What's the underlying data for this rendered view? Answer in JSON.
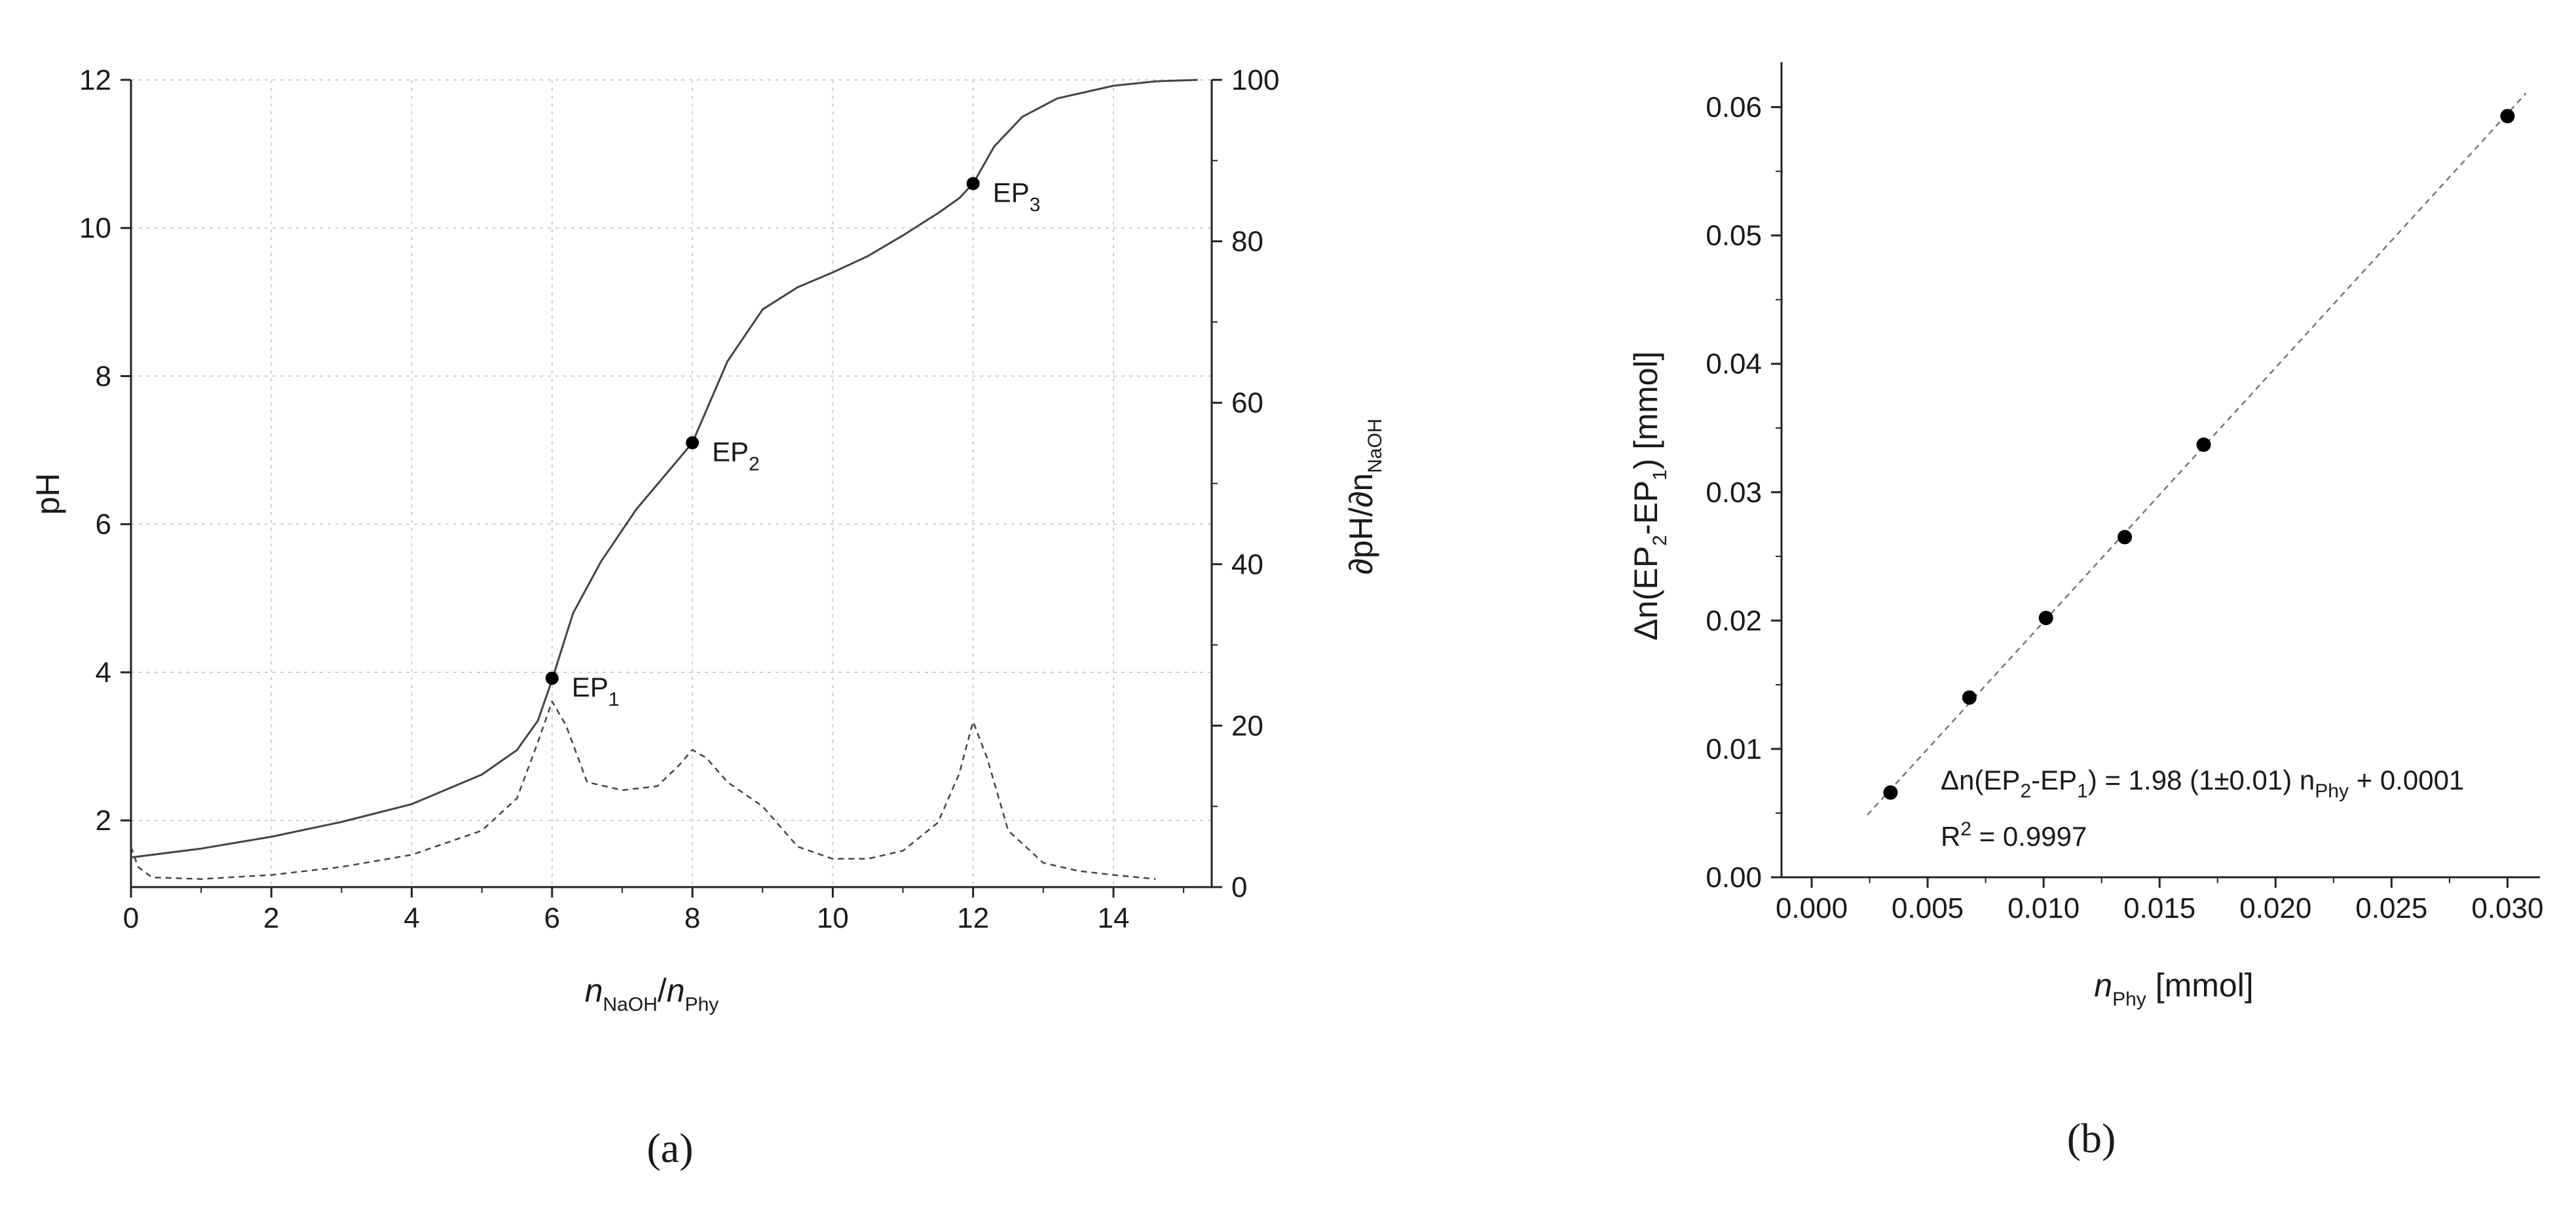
{
  "chart_data": [
    {
      "type": "line",
      "panel": "(a)",
      "xlabel": "n",
      "xlabel_sub1": "NaOH",
      "xlabel_sep": "/",
      "xlabel_n2": "n",
      "xlabel_sub2": "Phy",
      "ylabel": "pH",
      "y2label": "∂pH/∂n",
      "y2label_sub": "NaOH",
      "xlim": [
        0,
        15.4
      ],
      "ylim": [
        1.1,
        12
      ],
      "y2lim": [
        0,
        100
      ],
      "xticks": [
        "0",
        "2",
        "4",
        "6",
        "8",
        "10",
        "12",
        "14"
      ],
      "yticks": [
        "2",
        "4",
        "6",
        "8",
        "10",
        "12"
      ],
      "y2ticks": [
        "0",
        "20",
        "40",
        "60",
        "80",
        "100"
      ],
      "grid": true,
      "series": [
        {
          "name": "pH",
          "axis": "left",
          "style": "solid",
          "x": [
            0,
            1,
            2,
            3,
            4,
            5,
            5.5,
            5.8,
            6.0,
            6.3,
            6.7,
            7.2,
            7.6,
            8.0,
            8.5,
            9.0,
            9.5,
            10.0,
            10.5,
            11.0,
            11.5,
            11.8,
            12.0,
            12.3,
            12.7,
            13.2,
            14.0,
            14.6,
            15.2
          ],
          "y": [
            1.5,
            1.62,
            1.78,
            1.98,
            2.22,
            2.62,
            2.95,
            3.35,
            3.9,
            4.8,
            5.5,
            6.2,
            6.65,
            7.1,
            8.2,
            8.9,
            9.2,
            9.4,
            9.62,
            9.9,
            10.2,
            10.4,
            10.6,
            11.1,
            11.5,
            11.75,
            11.92,
            11.98,
            12.0
          ]
        },
        {
          "name": "∂pH/∂n NaOH",
          "axis": "right",
          "style": "dashed",
          "x": [
            0,
            0.1,
            0.3,
            1,
            2,
            3,
            4,
            5,
            5.5,
            5.8,
            6.0,
            6.2,
            6.5,
            7.0,
            7.5,
            7.8,
            8.0,
            8.2,
            8.5,
            9.0,
            9.5,
            10.0,
            10.5,
            11.0,
            11.5,
            11.8,
            12.0,
            12.2,
            12.5,
            13.0,
            13.5,
            14.0,
            14.6
          ],
          "y": [
            5,
            2.5,
            1.2,
            1,
            1.5,
            2.5,
            4,
            7,
            11,
            18,
            23,
            20,
            13,
            12,
            12.5,
            15,
            17,
            16,
            13,
            10,
            5,
            3.5,
            3.5,
            4.5,
            8,
            14,
            20.5,
            16,
            7,
            3,
            2,
            1.5,
            1
          ]
        }
      ],
      "annotations": [
        {
          "label": "EP",
          "sub": "1",
          "x": 6.0,
          "y": 3.92
        },
        {
          "label": "EP",
          "sub": "2",
          "x": 8.0,
          "y": 7.1
        },
        {
          "label": "EP",
          "sub": "3",
          "x": 12.0,
          "y": 10.6
        }
      ]
    },
    {
      "type": "scatter",
      "panel": "(b)",
      "xlabel": "n",
      "xlabel_sub": "Phy",
      "xlabel_unit": " [mmol]",
      "ylabel_pre": "Δn(EP",
      "ylabel_sub1": "2",
      "ylabel_mid": "-EP",
      "ylabel_sub2": "1",
      "ylabel_post": ") [mmol]",
      "xlim": [
        -0.0013,
        0.0314
      ],
      "ylim": [
        0,
        0.0635
      ],
      "xticks": [
        "0.000",
        "0.005",
        "0.010",
        "0.015",
        "0.020",
        "0.025",
        "0.030"
      ],
      "yticks": [
        "0.00",
        "0.01",
        "0.02",
        "0.03",
        "0.04",
        "0.05",
        "0.06"
      ],
      "grid": false,
      "x": [
        0.0034,
        0.0068,
        0.0101,
        0.0135,
        0.0169,
        0.03
      ],
      "y": [
        0.0066,
        0.014,
        0.0202,
        0.0265,
        0.0337,
        0.0593
      ],
      "fit": {
        "slope": 1.98,
        "intercept": 0.0001,
        "x_range": [
          0.0024,
          0.0308
        ],
        "style": "dashed"
      },
      "equation": {
        "pre": "Δn(EP",
        "sub1": "2",
        "mid": "-EP",
        "sub2": "1",
        "post": ") = 1.98 (1±0.01) n",
        "sub3": "Phy",
        "end": " + 0.0001"
      },
      "r2": {
        "pre": "R",
        "sup": "2",
        "post": " = 0.9997"
      }
    }
  ]
}
